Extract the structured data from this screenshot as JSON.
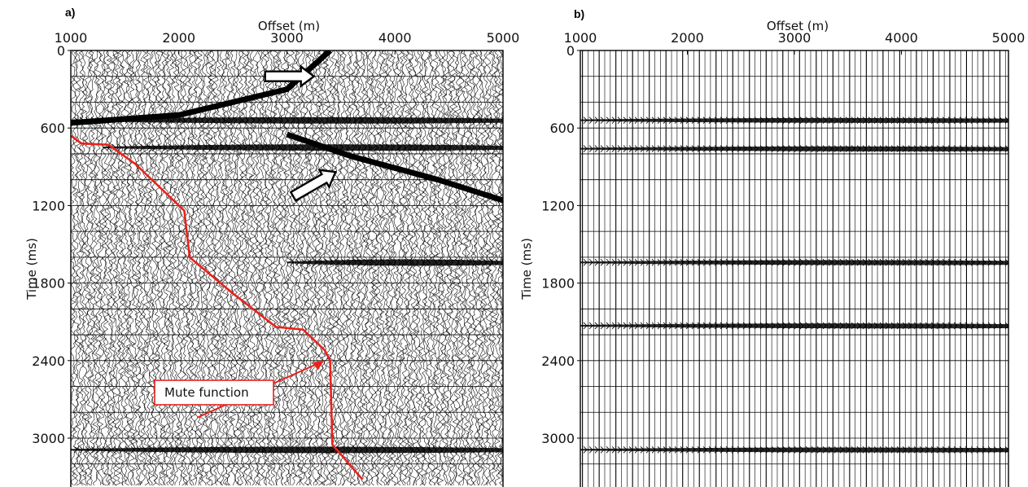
{
  "figure": {
    "panels": [
      {
        "label": "a)",
        "xlabel": "Offset (m)",
        "ylabel": "Time (ms)",
        "annotation": "Mute function"
      },
      {
        "label": "b)",
        "xlabel": "Offset (m)",
        "ylabel": "Time (ms)"
      }
    ]
  },
  "chart_data": [
    {
      "type": "seismic-gather",
      "panel": "a",
      "title": "",
      "xlabel": "Offset (m)",
      "ylabel": "Time (ms)",
      "xlim": [
        1000,
        5000
      ],
      "ylim": [
        0,
        3200
      ],
      "x_axis_position": "top",
      "y_inverted": true,
      "xticks": [
        1000,
        2000,
        3000,
        4000,
        5000
      ],
      "yticks": [
        0,
        600,
        1200,
        1800,
        2400,
        3000
      ],
      "grid": true,
      "events": [
        {
          "kind": "reflection",
          "t0_ms": 540,
          "x_start": 1000,
          "x_end": 5000
        },
        {
          "kind": "reflection",
          "t0_ms": 750,
          "x_start": 1300,
          "x_end": 5000
        },
        {
          "kind": "linear-noise",
          "points": [
            [
              3400,
              0
            ],
            [
              3000,
              300
            ],
            [
              2000,
              500
            ],
            [
              1000,
              560
            ]
          ]
        },
        {
          "kind": "linear-noise",
          "points": [
            [
              3000,
              650
            ],
            [
              3600,
              820
            ],
            [
              4400,
              1000
            ],
            [
              5000,
              1160
            ]
          ]
        },
        {
          "kind": "reflection",
          "t0_ms": 1640,
          "x_start": 3000,
          "x_end": 5000
        },
        {
          "kind": "reflection",
          "t0_ms": 3090,
          "x_start": 1000,
          "x_end": 5000
        }
      ],
      "mute_function": {
        "name": "Mute function",
        "color": "#e8231c",
        "points": [
          [
            1000,
            660
          ],
          [
            1100,
            720
          ],
          [
            1350,
            730
          ],
          [
            1600,
            880
          ],
          [
            2050,
            1240
          ],
          [
            2100,
            1600
          ],
          [
            2500,
            1880
          ],
          [
            2900,
            2140
          ],
          [
            3150,
            2160
          ],
          [
            3350,
            2320
          ],
          [
            3400,
            2400
          ],
          [
            3420,
            3050
          ],
          [
            3700,
            3320
          ]
        ]
      },
      "arrows": [
        {
          "points_to": [
            3250,
            200
          ],
          "style": "hollow"
        },
        {
          "points_to": [
            3450,
            940
          ],
          "style": "hollow"
        },
        {
          "points_to": [
            3300,
            2400
          ],
          "style": "red"
        }
      ]
    },
    {
      "type": "seismic-gather",
      "panel": "b",
      "title": "",
      "xlabel": "Offset (m)",
      "ylabel": "Time (ms)",
      "xlim": [
        1000,
        5000
      ],
      "ylim": [
        0,
        3200
      ],
      "x_axis_position": "top",
      "y_inverted": true,
      "xticks": [
        1000,
        2000,
        3000,
        4000,
        5000
      ],
      "yticks": [
        0,
        600,
        1200,
        1800,
        2400,
        3000
      ],
      "grid": true,
      "events": [
        {
          "kind": "reflection",
          "t0_ms": 540,
          "x_start": 1000,
          "x_end": 5000
        },
        {
          "kind": "reflection",
          "t0_ms": 760,
          "x_start": 1000,
          "x_end": 5000
        },
        {
          "kind": "reflection",
          "t0_ms": 1640,
          "x_start": 1000,
          "x_end": 5000
        },
        {
          "kind": "reflection",
          "t0_ms": 2130,
          "x_start": 1000,
          "x_end": 5000
        },
        {
          "kind": "reflection",
          "t0_ms": 3090,
          "x_start": 1000,
          "x_end": 5000
        }
      ]
    }
  ]
}
